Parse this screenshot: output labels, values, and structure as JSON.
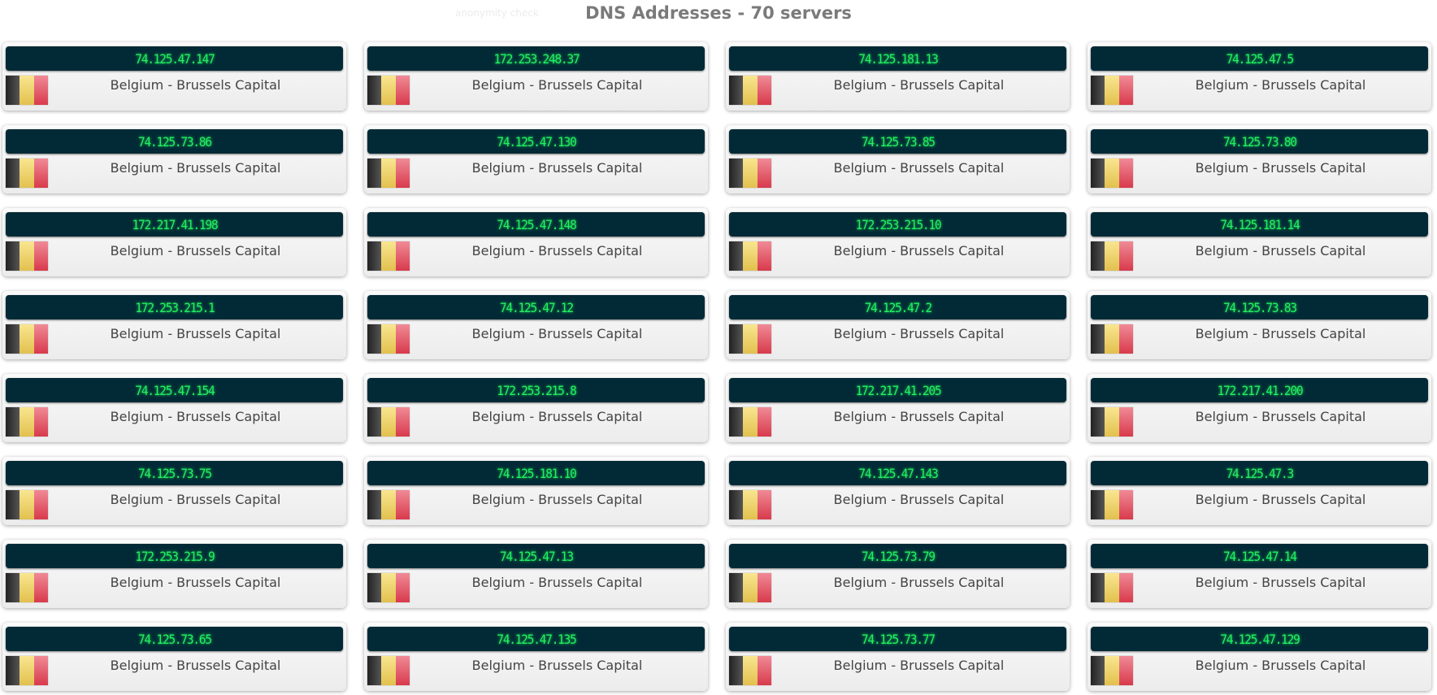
{
  "background_text": "anonymity check",
  "title": "DNS Addresses - 70 servers",
  "colors": {
    "ip_bar": "#022a36",
    "ip_text": "#22f060",
    "title": "#7a7a7a"
  },
  "servers": [
    {
      "ip": "74.125.47.147",
      "location": "Belgium - Brussels Capital",
      "flag": "belgium-flag"
    },
    {
      "ip": "172.253.248.37",
      "location": "Belgium - Brussels Capital",
      "flag": "belgium-flag"
    },
    {
      "ip": "74.125.181.13",
      "location": "Belgium - Brussels Capital",
      "flag": "belgium-flag"
    },
    {
      "ip": "74.125.47.5",
      "location": "Belgium - Brussels Capital",
      "flag": "belgium-flag"
    },
    {
      "ip": "74.125.73.86",
      "location": "Belgium - Brussels Capital",
      "flag": "belgium-flag"
    },
    {
      "ip": "74.125.47.130",
      "location": "Belgium - Brussels Capital",
      "flag": "belgium-flag"
    },
    {
      "ip": "74.125.73.85",
      "location": "Belgium - Brussels Capital",
      "flag": "belgium-flag"
    },
    {
      "ip": "74.125.73.80",
      "location": "Belgium - Brussels Capital",
      "flag": "belgium-flag"
    },
    {
      "ip": "172.217.41.198",
      "location": "Belgium - Brussels Capital",
      "flag": "belgium-flag"
    },
    {
      "ip": "74.125.47.148",
      "location": "Belgium - Brussels Capital",
      "flag": "belgium-flag"
    },
    {
      "ip": "172.253.215.10",
      "location": "Belgium - Brussels Capital",
      "flag": "belgium-flag"
    },
    {
      "ip": "74.125.181.14",
      "location": "Belgium - Brussels Capital",
      "flag": "belgium-flag"
    },
    {
      "ip": "172.253.215.1",
      "location": "Belgium - Brussels Capital",
      "flag": "belgium-flag"
    },
    {
      "ip": "74.125.47.12",
      "location": "Belgium - Brussels Capital",
      "flag": "belgium-flag"
    },
    {
      "ip": "74.125.47.2",
      "location": "Belgium - Brussels Capital",
      "flag": "belgium-flag"
    },
    {
      "ip": "74.125.73.83",
      "location": "Belgium - Brussels Capital",
      "flag": "belgium-flag"
    },
    {
      "ip": "74.125.47.154",
      "location": "Belgium - Brussels Capital",
      "flag": "belgium-flag"
    },
    {
      "ip": "172.253.215.8",
      "location": "Belgium - Brussels Capital",
      "flag": "belgium-flag"
    },
    {
      "ip": "172.217.41.205",
      "location": "Belgium - Brussels Capital",
      "flag": "belgium-flag"
    },
    {
      "ip": "172.217.41.200",
      "location": "Belgium - Brussels Capital",
      "flag": "belgium-flag"
    },
    {
      "ip": "74.125.73.75",
      "location": "Belgium - Brussels Capital",
      "flag": "belgium-flag"
    },
    {
      "ip": "74.125.181.10",
      "location": "Belgium - Brussels Capital",
      "flag": "belgium-flag"
    },
    {
      "ip": "74.125.47.143",
      "location": "Belgium - Brussels Capital",
      "flag": "belgium-flag"
    },
    {
      "ip": "74.125.47.3",
      "location": "Belgium - Brussels Capital",
      "flag": "belgium-flag"
    },
    {
      "ip": "172.253.215.9",
      "location": "Belgium - Brussels Capital",
      "flag": "belgium-flag"
    },
    {
      "ip": "74.125.47.13",
      "location": "Belgium - Brussels Capital",
      "flag": "belgium-flag"
    },
    {
      "ip": "74.125.73.79",
      "location": "Belgium - Brussels Capital",
      "flag": "belgium-flag"
    },
    {
      "ip": "74.125.47.14",
      "location": "Belgium - Brussels Capital",
      "flag": "belgium-flag"
    },
    {
      "ip": "74.125.73.65",
      "location": "Belgium - Brussels Capital",
      "flag": "belgium-flag"
    },
    {
      "ip": "74.125.47.135",
      "location": "Belgium - Brussels Capital",
      "flag": "belgium-flag"
    },
    {
      "ip": "74.125.73.77",
      "location": "Belgium - Brussels Capital",
      "flag": "belgium-flag"
    },
    {
      "ip": "74.125.47.129",
      "location": "Belgium - Brussels Capital",
      "flag": "belgium-flag"
    }
  ]
}
